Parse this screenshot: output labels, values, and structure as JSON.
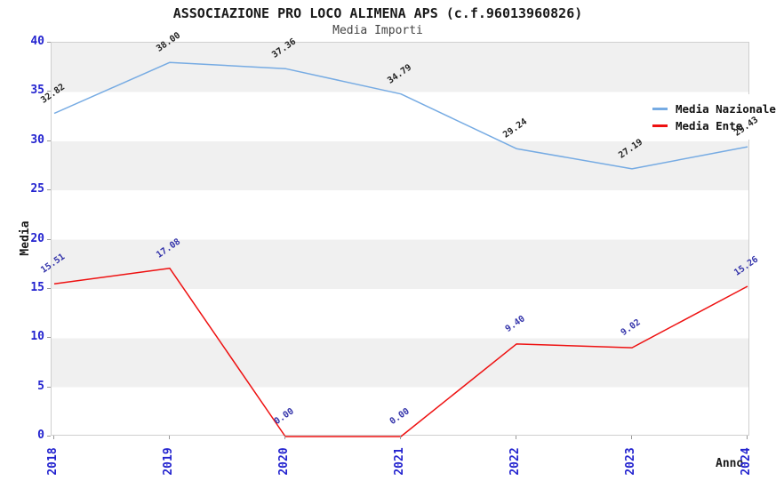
{
  "header": {
    "title": "ASSOCIAZIONE PRO LOCO ALIMENA APS (c.f.96013960826)",
    "subtitle": "Media Importi"
  },
  "chart_data": {
    "type": "line",
    "x": [
      "2018",
      "2019",
      "2020",
      "2021",
      "2022",
      "2023",
      "2024"
    ],
    "series": [
      {
        "name": "Media Nazionale",
        "color": "#76abe3",
        "label_color": "#222222",
        "values": [
          32.82,
          38.0,
          37.36,
          34.79,
          29.24,
          27.19,
          29.43
        ]
      },
      {
        "name": "Media Ente",
        "color": "#ee1111",
        "label_color": "#3333aa",
        "values": [
          15.51,
          17.08,
          0.0,
          0.0,
          9.4,
          9.02,
          15.26
        ]
      }
    ],
    "title": "ASSOCIAZIONE PRO LOCO ALIMENA APS (c.f.96013960826)",
    "subtitle": "Media Importi",
    "xlabel": "Anno",
    "ylabel": "Media",
    "ylim": [
      0,
      40
    ],
    "ytick_step": 5,
    "yticks": [
      0,
      5,
      10,
      15,
      20,
      25,
      30,
      35,
      40
    ],
    "grid": "alternating horizontal bands",
    "band_colors": [
      "#f0f0f0",
      "#ffffff"
    ],
    "legend_position": "top-right",
    "value_label_format": "0.00"
  },
  "style": {
    "tick_label_color": "#2323cf",
    "axis_border_color": "#cfcfcf",
    "background": "#ffffff"
  }
}
